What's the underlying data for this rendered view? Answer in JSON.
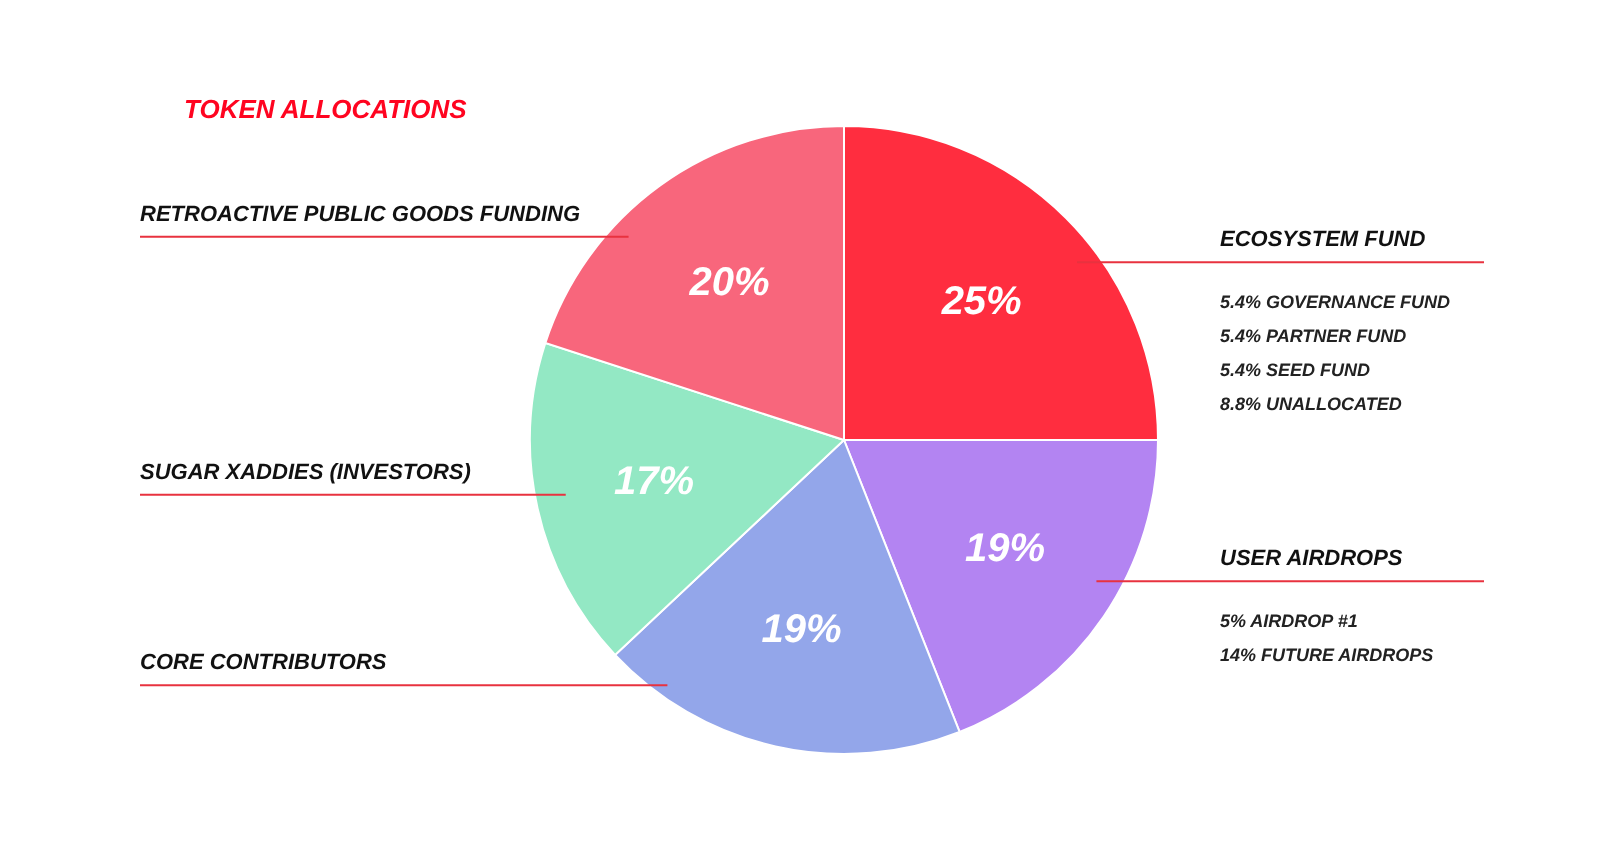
{
  "chart_data": {
    "type": "pie",
    "title": "TOKEN ALLOCATIONS",
    "categories": [
      "ECOSYSTEM FUND",
      "USER AIRDROPS",
      "CORE CONTRIBUTORS",
      "SUGAR XADDIES (INVESTORS)",
      "RETROACTIVE PUBLIC GOODS FUNDING"
    ],
    "values": [
      25,
      19,
      19,
      17,
      20
    ],
    "value_labels": [
      "25%",
      "19%",
      "19%",
      "17%",
      "20%"
    ],
    "colors": [
      "#ff2d3f",
      "#b384f2",
      "#93a6ea",
      "#93e8c4",
      "#f8667c"
    ],
    "annotations": [
      {
        "text": "5.4% GOVERNANCE FUND",
        "x": "ECOSYSTEM FUND"
      },
      {
        "text": "5.4% PARTNER FUND",
        "x": "ECOSYSTEM FUND"
      },
      {
        "text": "5.4% SEED FUND",
        "x": "ECOSYSTEM FUND"
      },
      {
        "text": "8.8% UNALLOCATED",
        "x": "ECOSYSTEM FUND"
      },
      {
        "text": "5% AIRDROP #1",
        "x": "USER AIRDROPS"
      },
      {
        "text": "14% FUTURE AIRDROPS",
        "x": "USER AIRDROPS"
      }
    ]
  }
}
